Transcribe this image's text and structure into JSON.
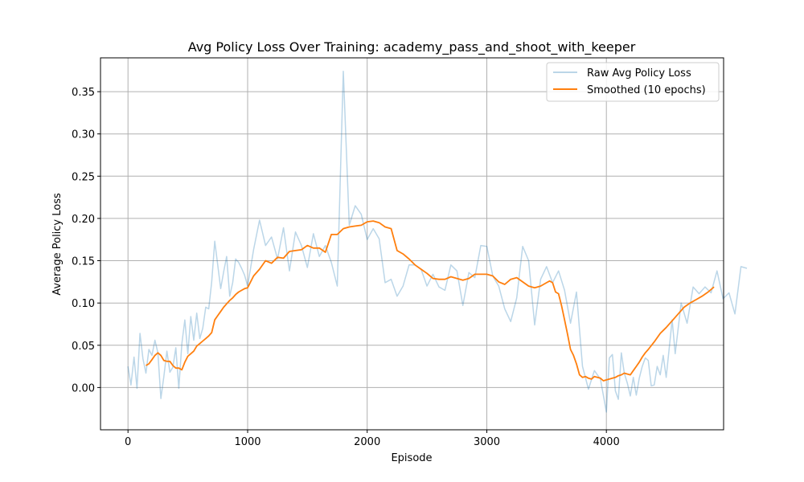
{
  "chart_data": {
    "type": "line",
    "title": "Avg Policy Loss Over Training: academy_pass_and_shoot_with_keeper",
    "xlabel": "Episode",
    "ylabel": "Average Policy Loss",
    "xlim": [
      -230,
      4980
    ],
    "ylim": [
      -0.05,
      0.39
    ],
    "xticks": [
      0,
      1000,
      2000,
      3000,
      4000
    ],
    "xtick_labels": [
      "0",
      "1000",
      "2000",
      "3000",
      "4000"
    ],
    "yticks": [
      0.0,
      0.05,
      0.1,
      0.15,
      0.2,
      0.25,
      0.3,
      0.35
    ],
    "ytick_labels": [
      "0.00",
      "0.05",
      "0.10",
      "0.15",
      "0.20",
      "0.25",
      "0.30",
      "0.35"
    ],
    "grid": true,
    "legend_position": "top-right",
    "series": [
      {
        "name": "Raw Avg Policy Loss",
        "color": "#1f77b4",
        "opacity": 0.3,
        "points": [
          [
            0,
            0.025
          ],
          [
            25,
            0.003
          ],
          [
            50,
            0.036
          ],
          [
            75,
            -0.001
          ],
          [
            100,
            0.064
          ],
          [
            125,
            0.034
          ],
          [
            150,
            0.017
          ],
          [
            175,
            0.045
          ],
          [
            200,
            0.038
          ],
          [
            225,
            0.056
          ],
          [
            250,
            0.041
          ],
          [
            275,
            -0.013
          ],
          [
            300,
            0.013
          ],
          [
            325,
            0.043
          ],
          [
            350,
            0.018
          ],
          [
            375,
            0.024
          ],
          [
            400,
            0.047
          ],
          [
            425,
            -0.001
          ],
          [
            450,
            0.052
          ],
          [
            475,
            0.08
          ],
          [
            500,
            0.04
          ],
          [
            525,
            0.084
          ],
          [
            550,
            0.056
          ],
          [
            575,
            0.088
          ],
          [
            600,
            0.058
          ],
          [
            625,
            0.07
          ],
          [
            650,
            0.095
          ],
          [
            675,
            0.093
          ],
          [
            700,
            0.125
          ],
          [
            725,
            0.173
          ],
          [
            750,
            0.145
          ],
          [
            775,
            0.117
          ],
          [
            800,
            0.137
          ],
          [
            825,
            0.155
          ],
          [
            850,
            0.108
          ],
          [
            875,
            0.124
          ],
          [
            900,
            0.152
          ],
          [
            925,
            0.148
          ],
          [
            950,
            0.141
          ],
          [
            975,
            0.133
          ],
          [
            1000,
            0.12
          ],
          [
            1050,
            0.163
          ],
          [
            1100,
            0.198
          ],
          [
            1150,
            0.168
          ],
          [
            1200,
            0.178
          ],
          [
            1250,
            0.152
          ],
          [
            1300,
            0.189
          ],
          [
            1350,
            0.138
          ],
          [
            1400,
            0.184
          ],
          [
            1450,
            0.168
          ],
          [
            1500,
            0.142
          ],
          [
            1550,
            0.182
          ],
          [
            1600,
            0.155
          ],
          [
            1650,
            0.168
          ],
          [
            1700,
            0.148
          ],
          [
            1750,
            0.12
          ],
          [
            1800,
            0.374
          ],
          [
            1850,
            0.192
          ],
          [
            1900,
            0.215
          ],
          [
            1950,
            0.205
          ],
          [
            2000,
            0.175
          ],
          [
            2050,
            0.188
          ],
          [
            2100,
            0.176
          ],
          [
            2150,
            0.124
          ],
          [
            2200,
            0.128
          ],
          [
            2250,
            0.108
          ],
          [
            2300,
            0.12
          ],
          [
            2350,
            0.145
          ],
          [
            2400,
            0.145
          ],
          [
            2450,
            0.14
          ],
          [
            2500,
            0.12
          ],
          [
            2550,
            0.134
          ],
          [
            2600,
            0.119
          ],
          [
            2650,
            0.115
          ],
          [
            2700,
            0.145
          ],
          [
            2750,
            0.138
          ],
          [
            2800,
            0.097
          ],
          [
            2850,
            0.136
          ],
          [
            2900,
            0.13
          ],
          [
            2950,
            0.168
          ],
          [
            3000,
            0.167
          ],
          [
            3050,
            0.132
          ],
          [
            3100,
            0.12
          ],
          [
            3150,
            0.093
          ],
          [
            3200,
            0.078
          ],
          [
            3250,
            0.106
          ],
          [
            3300,
            0.167
          ],
          [
            3350,
            0.15
          ],
          [
            3400,
            0.074
          ],
          [
            3450,
            0.128
          ],
          [
            3500,
            0.143
          ],
          [
            3550,
            0.124
          ],
          [
            3600,
            0.138
          ],
          [
            3650,
            0.115
          ],
          [
            3700,
            0.076
          ],
          [
            3750,
            0.113
          ],
          [
            3800,
            0.025
          ],
          [
            3850,
            -0.002
          ],
          [
            3900,
            0.02
          ],
          [
            3950,
            0.01
          ],
          [
            4000,
            -0.029
          ],
          [
            4025,
            0.035
          ],
          [
            4050,
            0.039
          ],
          [
            4075,
            -0.004
          ],
          [
            4100,
            -0.014
          ],
          [
            4125,
            0.041
          ],
          [
            4150,
            0.017
          ],
          [
            4175,
            0.005
          ],
          [
            4200,
            -0.01
          ],
          [
            4225,
            0.012
          ],
          [
            4250,
            -0.009
          ],
          [
            4275,
            0.011
          ],
          [
            4300,
            0.025
          ],
          [
            4325,
            0.035
          ],
          [
            4350,
            0.032
          ],
          [
            4375,
            0.002
          ],
          [
            4400,
            0.003
          ],
          [
            4425,
            0.025
          ],
          [
            4450,
            0.015
          ],
          [
            4475,
            0.038
          ],
          [
            4500,
            0.012
          ],
          [
            4525,
            0.046
          ],
          [
            4550,
            0.08
          ],
          [
            4575,
            0.04
          ],
          [
            4625,
            0.1
          ],
          [
            4675,
            0.076
          ],
          [
            4725,
            0.119
          ],
          [
            4775,
            0.111
          ],
          [
            4825,
            0.119
          ],
          [
            4875,
            0.112
          ],
          [
            4925,
            0.138
          ],
          [
            4975,
            0.105
          ],
          [
            5025,
            0.112
          ],
          [
            5075,
            0.087
          ],
          [
            5125,
            0.143
          ],
          [
            5175,
            0.141
          ]
        ]
      },
      {
        "name": "Smoothed (10 epochs)",
        "color": "#ff7f0e",
        "opacity": 1,
        "points": [
          [
            150,
            0.026
          ],
          [
            175,
            0.028
          ],
          [
            200,
            0.033
          ],
          [
            225,
            0.038
          ],
          [
            250,
            0.041
          ],
          [
            275,
            0.038
          ],
          [
            300,
            0.032
          ],
          [
            325,
            0.031
          ],
          [
            350,
            0.031
          ],
          [
            375,
            0.026
          ],
          [
            400,
            0.023
          ],
          [
            425,
            0.023
          ],
          [
            450,
            0.021
          ],
          [
            475,
            0.03
          ],
          [
            500,
            0.037
          ],
          [
            525,
            0.04
          ],
          [
            550,
            0.043
          ],
          [
            575,
            0.049
          ],
          [
            600,
            0.052
          ],
          [
            625,
            0.055
          ],
          [
            650,
            0.058
          ],
          [
            675,
            0.061
          ],
          [
            700,
            0.065
          ],
          [
            725,
            0.08
          ],
          [
            750,
            0.085
          ],
          [
            775,
            0.09
          ],
          [
            800,
            0.095
          ],
          [
            825,
            0.099
          ],
          [
            850,
            0.103
          ],
          [
            875,
            0.106
          ],
          [
            900,
            0.11
          ],
          [
            925,
            0.113
          ],
          [
            950,
            0.115
          ],
          [
            975,
            0.117
          ],
          [
            1000,
            0.118
          ],
          [
            1050,
            0.132
          ],
          [
            1100,
            0.14
          ],
          [
            1150,
            0.15
          ],
          [
            1200,
            0.147
          ],
          [
            1250,
            0.154
          ],
          [
            1300,
            0.153
          ],
          [
            1350,
            0.161
          ],
          [
            1400,
            0.162
          ],
          [
            1450,
            0.163
          ],
          [
            1500,
            0.168
          ],
          [
            1550,
            0.165
          ],
          [
            1600,
            0.165
          ],
          [
            1650,
            0.16
          ],
          [
            1700,
            0.181
          ],
          [
            1750,
            0.181
          ],
          [
            1800,
            0.188
          ],
          [
            1850,
            0.19
          ],
          [
            1900,
            0.191
          ],
          [
            1950,
            0.192
          ],
          [
            2000,
            0.196
          ],
          [
            2050,
            0.197
          ],
          [
            2100,
            0.195
          ],
          [
            2150,
            0.19
          ],
          [
            2200,
            0.188
          ],
          [
            2250,
            0.162
          ],
          [
            2300,
            0.158
          ],
          [
            2350,
            0.152
          ],
          [
            2400,
            0.145
          ],
          [
            2450,
            0.14
          ],
          [
            2500,
            0.135
          ],
          [
            2550,
            0.129
          ],
          [
            2600,
            0.128
          ],
          [
            2650,
            0.128
          ],
          [
            2700,
            0.131
          ],
          [
            2750,
            0.129
          ],
          [
            2800,
            0.127
          ],
          [
            2850,
            0.129
          ],
          [
            2900,
            0.134
          ],
          [
            2950,
            0.134
          ],
          [
            3000,
            0.134
          ],
          [
            3050,
            0.132
          ],
          [
            3100,
            0.125
          ],
          [
            3150,
            0.122
          ],
          [
            3200,
            0.128
          ],
          [
            3250,
            0.13
          ],
          [
            3300,
            0.125
          ],
          [
            3350,
            0.12
          ],
          [
            3400,
            0.118
          ],
          [
            3450,
            0.12
          ],
          [
            3500,
            0.124
          ],
          [
            3525,
            0.126
          ],
          [
            3550,
            0.124
          ],
          [
            3575,
            0.113
          ],
          [
            3600,
            0.111
          ],
          [
            3625,
            0.097
          ],
          [
            3650,
            0.08
          ],
          [
            3675,
            0.063
          ],
          [
            3700,
            0.045
          ],
          [
            3725,
            0.038
          ],
          [
            3750,
            0.028
          ],
          [
            3775,
            0.015
          ],
          [
            3800,
            0.012
          ],
          [
            3825,
            0.013
          ],
          [
            3850,
            0.011
          ],
          [
            3875,
            0.01
          ],
          [
            3900,
            0.013
          ],
          [
            3925,
            0.012
          ],
          [
            3950,
            0.011
          ],
          [
            3975,
            0.008
          ],
          [
            4000,
            0.009
          ],
          [
            4025,
            0.01
          ],
          [
            4050,
            0.011
          ],
          [
            4075,
            0.012
          ],
          [
            4100,
            0.014
          ],
          [
            4125,
            0.015
          ],
          [
            4150,
            0.017
          ],
          [
            4175,
            0.016
          ],
          [
            4200,
            0.015
          ],
          [
            4225,
            0.02
          ],
          [
            4250,
            0.025
          ],
          [
            4275,
            0.03
          ],
          [
            4300,
            0.036
          ],
          [
            4325,
            0.041
          ],
          [
            4350,
            0.045
          ],
          [
            4400,
            0.054
          ],
          [
            4450,
            0.064
          ],
          [
            4500,
            0.071
          ],
          [
            4550,
            0.079
          ],
          [
            4600,
            0.087
          ],
          [
            4650,
            0.095
          ],
          [
            4700,
            0.1
          ],
          [
            4750,
            0.104
          ],
          [
            4800,
            0.108
          ],
          [
            4850,
            0.113
          ],
          [
            4900,
            0.119
          ]
        ]
      }
    ]
  }
}
